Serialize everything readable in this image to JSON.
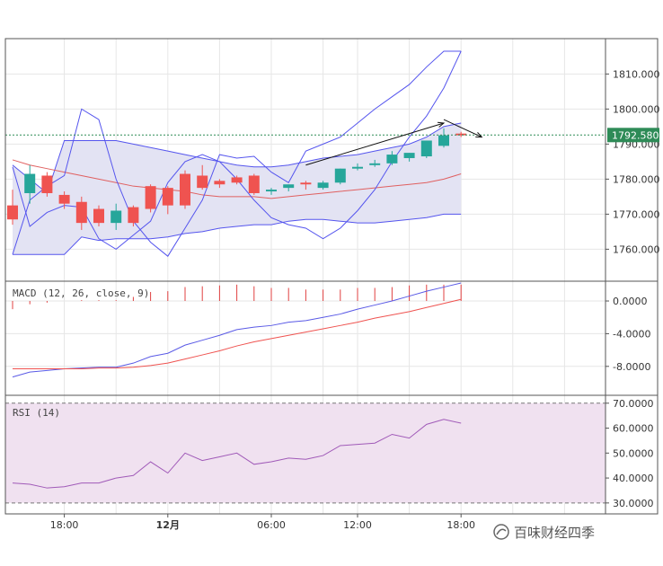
{
  "colors": {
    "bull": "#26a69a",
    "bear": "#ef5350",
    "band_fill": "#e3e3f3",
    "band_line": "#5555ee",
    "ma": "#e06060",
    "macd": "#5a5ae6",
    "signal": "#ef5350",
    "hist": "#e04040",
    "rsi": "#a05ab8",
    "rsi_band": "#f0e1f0",
    "last_price_bg": "#2e8b57"
  },
  "watermark": "百味财经四季",
  "chart_data": [
    {
      "type": "candlestick",
      "panel": "price",
      "yticks": [
        "1760.000",
        "1770.000",
        "1780.000",
        "1790.000",
        "1800.000",
        "1810.000"
      ],
      "ylim": [
        1756,
        1816.5
      ],
      "last_price_label": "1792.580",
      "last_price": 1792.58,
      "x_ticks": [
        {
          "label": "18:00",
          "index": 3
        },
        {
          "label": "12月",
          "index": 9
        },
        {
          "label": "06:00",
          "index": 15
        },
        {
          "label": "12:00",
          "index": 20
        },
        {
          "label": "18:00",
          "index": 26
        }
      ],
      "candles": [
        {
          "o": 1772.5,
          "h": 1777.0,
          "l": 1767.0,
          "c": 1768.5
        },
        {
          "o": 1776.0,
          "h": 1784.0,
          "l": 1773.0,
          "c": 1781.5
        },
        {
          "o": 1781.0,
          "h": 1782.0,
          "l": 1775.0,
          "c": 1776.0
        },
        {
          "o": 1775.5,
          "h": 1776.5,
          "l": 1771.5,
          "c": 1773.0
        },
        {
          "o": 1773.5,
          "h": 1775.0,
          "l": 1765.5,
          "c": 1767.5
        },
        {
          "o": 1771.5,
          "h": 1772.5,
          "l": 1766.5,
          "c": 1767.5
        },
        {
          "o": 1767.5,
          "h": 1773.0,
          "l": 1765.5,
          "c": 1771.0
        },
        {
          "o": 1772.0,
          "h": 1772.5,
          "l": 1766.5,
          "c": 1767.5
        },
        {
          "o": 1778.0,
          "h": 1778.5,
          "l": 1770.5,
          "c": 1771.5
        },
        {
          "o": 1777.5,
          "h": 1778.0,
          "l": 1770.0,
          "c": 1772.5
        },
        {
          "o": 1781.5,
          "h": 1782.5,
          "l": 1771.5,
          "c": 1772.5
        },
        {
          "o": 1781.0,
          "h": 1784.0,
          "l": 1777.0,
          "c": 1777.5
        },
        {
          "o": 1779.5,
          "h": 1780.0,
          "l": 1777.5,
          "c": 1778.5
        },
        {
          "o": 1780.5,
          "h": 1781.0,
          "l": 1778.5,
          "c": 1779.0
        },
        {
          "o": 1781.0,
          "h": 1781.5,
          "l": 1775.5,
          "c": 1776.0
        },
        {
          "o": 1776.5,
          "h": 1777.5,
          "l": 1775.5,
          "c": 1777.0
        },
        {
          "o": 1777.5,
          "h": 1778.5,
          "l": 1776.5,
          "c": 1778.5
        },
        {
          "o": 1779.0,
          "h": 1779.5,
          "l": 1777.0,
          "c": 1778.5
        },
        {
          "o": 1777.5,
          "h": 1779.5,
          "l": 1777.0,
          "c": 1779.0
        },
        {
          "o": 1779.0,
          "h": 1783.0,
          "l": 1778.5,
          "c": 1783.0
        },
        {
          "o": 1783.0,
          "h": 1784.5,
          "l": 1782.5,
          "c": 1783.5
        },
        {
          "o": 1784.0,
          "h": 1785.5,
          "l": 1783.5,
          "c": 1784.5
        },
        {
          "o": 1784.5,
          "h": 1788.0,
          "l": 1784.0,
          "c": 1787.0
        },
        {
          "o": 1786.0,
          "h": 1787.5,
          "l": 1785.0,
          "c": 1787.5
        },
        {
          "o": 1786.5,
          "h": 1791.0,
          "l": 1786.0,
          "c": 1791.0
        },
        {
          "o": 1789.5,
          "h": 1794.5,
          "l": 1789.0,
          "c": 1792.5
        },
        {
          "o": 1793.0,
          "h": 1793.5,
          "l": 1792.0,
          "c": 1792.5
        }
      ],
      "bollinger_upper": [
        1784,
        1780,
        1776,
        1791,
        1791,
        1791,
        1791,
        1790,
        1789,
        1788,
        1787,
        1786,
        1785,
        1784,
        1783.5,
        1783.5,
        1784,
        1785,
        1786,
        1786.5,
        1787,
        1788,
        1789,
        1790,
        1792,
        1795,
        1796
      ],
      "bollinger_lower": [
        1758.5,
        1758.5,
        1758.5,
        1758.5,
        1763.5,
        1762.5,
        1763,
        1763,
        1763,
        1763.5,
        1764.5,
        1765,
        1766,
        1766.5,
        1767,
        1767,
        1768,
        1768.5,
        1768.5,
        1768,
        1767.5,
        1767.5,
        1768,
        1768.5,
        1769,
        1770,
        1770
      ],
      "moving_average": [
        1785.5,
        1784,
        1783,
        1782,
        1781,
        1780,
        1779,
        1778,
        1777.5,
        1777,
        1776.5,
        1775.5,
        1775,
        1775,
        1775,
        1774.5,
        1775,
        1775.5,
        1776,
        1776.5,
        1777,
        1777.5,
        1778,
        1778.5,
        1779,
        1780,
        1781.5
      ],
      "line_extra_1": [
        1783.5,
        1766.5,
        1770.5,
        1772.5,
        1772,
        1763,
        1760,
        1764,
        1768,
        1779,
        1785,
        1787,
        1785,
        1780,
        1774,
        1769,
        1767,
        1766,
        1763,
        1766,
        1771,
        1777,
        1785,
        1792,
        1798,
        1806,
        1816.5
      ],
      "line_extra_2": [
        1758.5,
        1774,
        1778,
        1781,
        1800,
        1797,
        1780,
        1768,
        1762,
        1758,
        1766,
        1774,
        1787,
        1786,
        1786.5,
        1782,
        1779,
        1788,
        1790,
        1792,
        1796,
        1800,
        1803.5,
        1807,
        1812,
        1816.5,
        1816.5
      ],
      "annotation_arrows": [
        {
          "from": [
            17,
            1784
          ],
          "to": [
            25,
            1796
          ]
        },
        {
          "from": [
            25,
            1797
          ],
          "to": [
            27.2,
            1792
          ]
        }
      ]
    },
    {
      "type": "line",
      "panel": "macd",
      "title": "MACD (12, 26, close, 9)",
      "yticks": [
        "0.0000",
        "-4.0000",
        "-8.0000"
      ],
      "ylim": [
        -10,
        2.2
      ],
      "macd": [
        -9.3,
        -8.7,
        -8.5,
        -8.3,
        -8.2,
        -8.1,
        -8.1,
        -7.6,
        -6.8,
        -6.4,
        -5.4,
        -4.8,
        -4.2,
        -3.5,
        -3.2,
        -3.0,
        -2.6,
        -2.4,
        -2.0,
        -1.6,
        -1.0,
        -0.5,
        0.0,
        0.6,
        1.2,
        1.7,
        2.2
      ],
      "signal": [
        -8.3,
        -8.3,
        -8.3,
        -8.3,
        -8.3,
        -8.2,
        -8.2,
        -8.1,
        -7.9,
        -7.6,
        -7.1,
        -6.6,
        -6.1,
        -5.5,
        -5.0,
        -4.6,
        -4.2,
        -3.8,
        -3.4,
        -3.0,
        -2.6,
        -2.1,
        -1.7,
        -1.3,
        -0.8,
        -0.3,
        0.2
      ],
      "histogram": [
        -1.0,
        -0.4,
        -0.2,
        0.0,
        0.1,
        0.1,
        0.1,
        0.5,
        1.1,
        1.2,
        1.7,
        1.8,
        1.9,
        2.0,
        1.8,
        1.6,
        1.6,
        1.4,
        1.4,
        1.4,
        1.6,
        1.6,
        1.7,
        1.9,
        2.0,
        2.0,
        2.0
      ]
    },
    {
      "type": "line",
      "panel": "rsi",
      "title": "RSI (14)",
      "yticks": [
        "70.0000",
        "60.0000",
        "50.0000",
        "40.0000",
        "30.0000"
      ],
      "ylim": [
        28.5,
        71
      ],
      "band": [
        30,
        70
      ],
      "values": [
        38,
        37.5,
        36,
        36.5,
        38,
        38,
        40,
        41,
        46.5,
        42,
        50,
        47,
        48.5,
        50,
        45.5,
        46.5,
        48,
        47.5,
        49,
        53,
        53.5,
        54,
        57.5,
        56,
        61.5,
        63.5,
        62
      ]
    }
  ]
}
